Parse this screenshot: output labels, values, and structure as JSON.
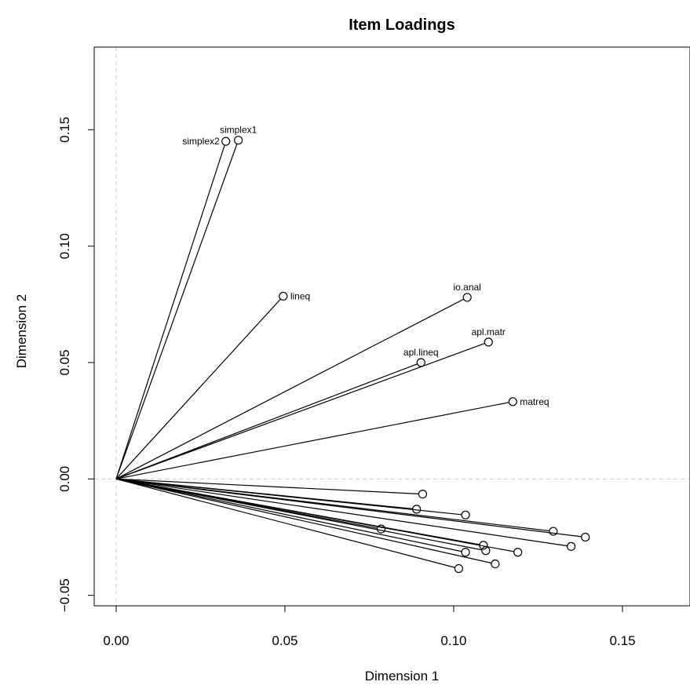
{
  "chart_data": {
    "type": "scatter",
    "title": "Item Loadings",
    "xlabel": "Dimension 1",
    "ylabel": "Dimension 2",
    "xlim": [
      -0.0065,
      0.17
    ],
    "ylim": [
      -0.0545,
      0.1855
    ],
    "x_ticks": [
      0.0,
      0.05,
      0.1,
      0.15
    ],
    "y_ticks": [
      -0.05,
      0.0,
      0.05,
      0.1,
      0.15
    ],
    "x_tick_labels": [
      "0.00",
      "0.05",
      "0.10",
      "0.15"
    ],
    "y_tick_labels": [
      "−0.05",
      "0.00",
      "0.05",
      "0.10",
      "0.15"
    ],
    "reference_lines": {
      "x": 0,
      "y": 0,
      "style": "dashed",
      "color": "#cccccc"
    },
    "origin": [
      0,
      0
    ],
    "points": [
      {
        "x": 0.0325,
        "y": 0.145,
        "label": "simplex2",
        "label_pos": "left"
      },
      {
        "x": 0.0362,
        "y": 0.1455,
        "label": "simplex1",
        "label_pos": "top"
      },
      {
        "x": 0.0495,
        "y": 0.0785,
        "label": "lineq",
        "label_pos": "right"
      },
      {
        "x": 0.104,
        "y": 0.078,
        "label": "io.anal",
        "label_pos": "top"
      },
      {
        "x": 0.1103,
        "y": 0.0588,
        "label": "apl.matr",
        "label_pos": "top"
      },
      {
        "x": 0.0903,
        "y": 0.05,
        "label": "apl.lineq",
        "label_pos": "top"
      },
      {
        "x": 0.1175,
        "y": 0.0332,
        "label": "matreq",
        "label_pos": "right"
      },
      {
        "x": 0.0908,
        "y": -0.0065,
        "label": ""
      },
      {
        "x": 0.089,
        "y": -0.013,
        "label": ""
      },
      {
        "x": 0.1035,
        "y": -0.0155,
        "label": ""
      },
      {
        "x": 0.1295,
        "y": -0.0225,
        "label": ""
      },
      {
        "x": 0.139,
        "y": -0.025,
        "label": ""
      },
      {
        "x": 0.1348,
        "y": -0.029,
        "label": ""
      },
      {
        "x": 0.0785,
        "y": -0.0215,
        "label": ""
      },
      {
        "x": 0.1088,
        "y": -0.0285,
        "label": ""
      },
      {
        "x": 0.1095,
        "y": -0.0308,
        "label": ""
      },
      {
        "x": 0.1035,
        "y": -0.0315,
        "label": ""
      },
      {
        "x": 0.119,
        "y": -0.0315,
        "label": ""
      },
      {
        "x": 0.1123,
        "y": -0.0365,
        "label": ""
      },
      {
        "x": 0.1015,
        "y": -0.0385,
        "label": ""
      }
    ]
  }
}
